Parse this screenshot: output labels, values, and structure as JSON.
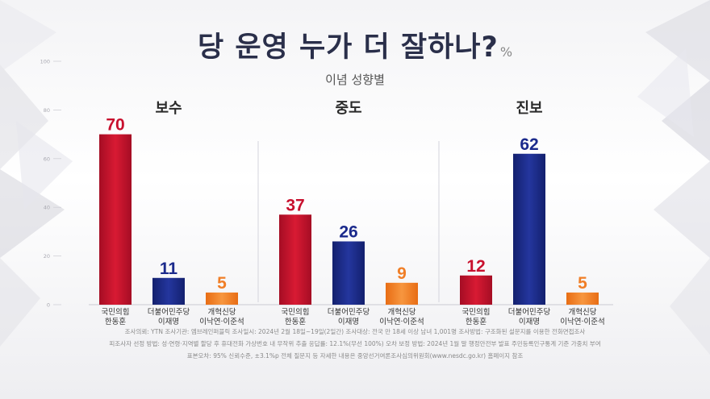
{
  "header": {
    "title": "당 운영 누가 더 잘하나?",
    "unit": "%",
    "subtitle": "이념 성향별"
  },
  "footnotes": [
    "조사의뢰: YTN     조사기관: 엠브레인퍼블릭     조사일시: 2024년 2월 18일~19일(2일간)     조사대상: 전국 만 18세 이상 남녀 1,001명     조사방법: 구조화된 설문지를 이용한 전화면접조사",
    "피조사자 선정 방법: 성·연령·지역별 할당 후 휴대전화 가상번호 내 무작위 추출     응답률: 12.1%(무선 100%)     오차 보정 방법: 2024년 1월 말 행정안전부 발표 주민등록인구통계 기준 가중치 부여",
    "표본오차: 95% 신뢰수준, ±3.1%p     전체 질문지 등 자세한 내용은 중앙선거여론조사심의위원회(www.nesdc.go.kr) 홈페이지 참조"
  ],
  "colors": {
    "ppp": "#c8102e",
    "dem": "#1b2a8c",
    "reform": "#f07e26",
    "title": "#2a2f4a"
  },
  "chart_data": {
    "type": "bar",
    "ylim": [
      0,
      100
    ],
    "yticks": [
      0,
      20,
      40,
      60,
      80,
      100
    ],
    "groups": [
      "보수",
      "중도",
      "진보"
    ],
    "categories": [
      {
        "party": "국민의힘",
        "leader": "한동훈"
      },
      {
        "party": "더불어민주당",
        "leader": "이재명"
      },
      {
        "party": "개혁신당",
        "leader": "이낙연·이준석"
      }
    ],
    "values": [
      [
        70,
        11,
        5
      ],
      [
        37,
        26,
        9
      ],
      [
        12,
        62,
        5
      ]
    ]
  }
}
